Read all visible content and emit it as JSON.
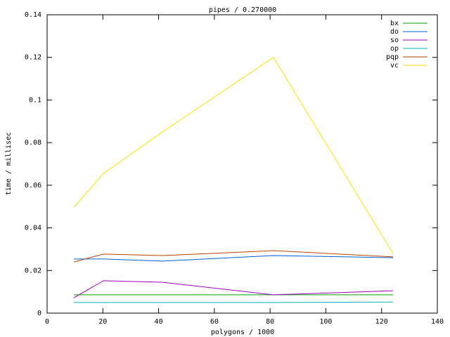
{
  "chart_data": {
    "type": "line",
    "title": "pipes / 0.270000",
    "x_label": "polygons / 1000",
    "y_label": "time / millisec",
    "x": [
      9.6,
      20.2,
      41.4,
      81.2,
      124.1
    ],
    "series": [
      {
        "name": "bx",
        "color": "#00a000",
        "values": [
          0.0086,
          0.0086,
          0.0086,
          0.0086,
          0.0086
        ]
      },
      {
        "name": "do",
        "color": "#0060d0",
        "values": [
          0.0254,
          0.0254,
          0.0244,
          0.027,
          0.026
        ]
      },
      {
        "name": "so",
        "color": "#a000c0",
        "values": [
          0.0072,
          0.0152,
          0.0145,
          0.0086,
          0.0105
        ]
      },
      {
        "name": "op",
        "color": "#00b0c0",
        "values": [
          0.005,
          0.005,
          0.005,
          0.005,
          0.0052
        ]
      },
      {
        "name": "pqp",
        "color": "#c04000",
        "values": [
          0.024,
          0.0277,
          0.027,
          0.0293,
          0.0264
        ]
      },
      {
        "name": "vc",
        "color": "#ffe000",
        "values": [
          0.0497,
          0.0655,
          0.085,
          0.12,
          0.028
        ]
      }
    ],
    "xlim": [
      0,
      140
    ],
    "xticks": [
      0,
      20,
      40,
      60,
      80,
      100,
      120,
      140
    ],
    "ylim": [
      0,
      0.14
    ],
    "yticks": [
      0,
      0.02,
      0.04,
      0.06,
      0.08,
      0.1,
      0.12,
      0.14
    ],
    "legend": "top-right",
    "grid": false
  }
}
